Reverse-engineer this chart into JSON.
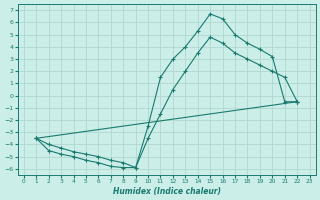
{
  "title": "",
  "xlabel": "Humidex (Indice chaleur)",
  "bg_color": "#cceee8",
  "line_color": "#1a7a6e",
  "grid_color": "#b0d8d0",
  "xmin": -0.5,
  "xmax": 23.5,
  "ymin": -6.5,
  "ymax": 7.5,
  "yticks": [
    7,
    6,
    5,
    4,
    3,
    2,
    1,
    0,
    -1,
    -2,
    -3,
    -4,
    -5,
    -6
  ],
  "xticks": [
    0,
    1,
    2,
    3,
    4,
    5,
    6,
    7,
    8,
    9,
    10,
    11,
    12,
    13,
    14,
    15,
    16,
    17,
    18,
    19,
    20,
    21,
    22,
    23
  ],
  "curve1_x": [
    1,
    2,
    3,
    4,
    5,
    6,
    7,
    8,
    9,
    10,
    11,
    12,
    13,
    14,
    15,
    16,
    17,
    18,
    19,
    20,
    21,
    22
  ],
  "curve1_y": [
    -3.5,
    -4.5,
    -4.8,
    -5.0,
    -5.3,
    -5.5,
    -5.8,
    -5.9,
    -5.9,
    -2.5,
    1.5,
    3,
    4,
    5.3,
    6.7,
    6.3,
    5.0,
    4.3,
    3.8,
    3.2,
    -0.5,
    -0.5
  ],
  "curve2_x": [
    1,
    22
  ],
  "curve2_y": [
    -3.5,
    -0.5
  ],
  "curve3_x": [
    1,
    2,
    3,
    4,
    5,
    6,
    7,
    8,
    9,
    10,
    11,
    12,
    13,
    14,
    15,
    16,
    17,
    18,
    19,
    20,
    21,
    22
  ],
  "curve3_y": [
    -3.5,
    -4.0,
    -4.3,
    -4.6,
    -4.8,
    -5.0,
    -5.3,
    -5.5,
    -5.9,
    -3.5,
    -1.5,
    0.5,
    2,
    3.5,
    4.8,
    4.3,
    3.5,
    3.0,
    2.5,
    2.0,
    1.5,
    -0.5
  ]
}
